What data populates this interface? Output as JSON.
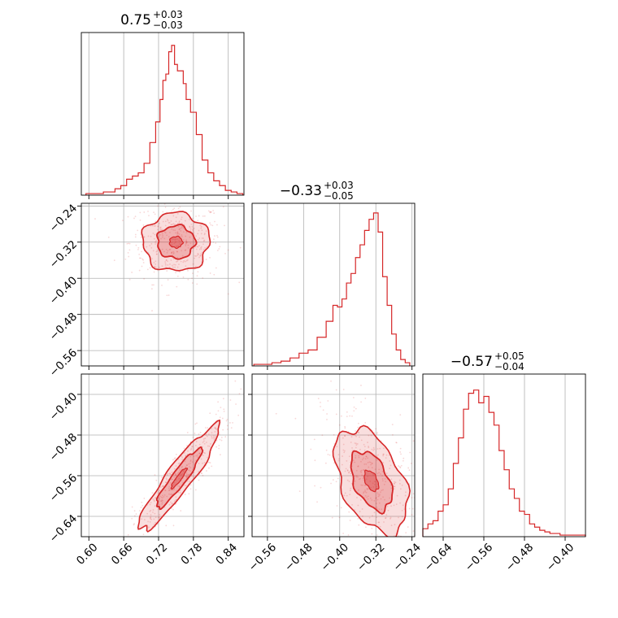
{
  "chart_data": {
    "type": "corner",
    "color": "#d62728",
    "parameters": [
      {
        "title_main": "0.75",
        "title_plus": "+0.03",
        "title_minus": "−0.03",
        "ticks": [
          "0.60",
          "0.66",
          "0.72",
          "0.78",
          "0.84"
        ],
        "tick_values": [
          0.6,
          0.66,
          0.72,
          0.78,
          0.84
        ],
        "range": [
          0.587,
          0.867
        ],
        "hist": {
          "x": [
            0.6,
            0.61,
            0.62,
            0.63,
            0.64,
            0.65,
            0.66,
            0.67,
            0.68,
            0.69,
            0.7,
            0.71,
            0.72,
            0.725,
            0.73,
            0.735,
            0.74,
            0.745,
            0.75,
            0.755,
            0.76,
            0.765,
            0.77,
            0.78,
            0.79,
            0.8,
            0.81,
            0.82,
            0.83,
            0.84,
            0.85,
            0.86
          ],
          "y": [
            0.01,
            0.01,
            0.01,
            0.02,
            0.02,
            0.04,
            0.06,
            0.1,
            0.12,
            0.14,
            0.2,
            0.33,
            0.46,
            0.6,
            0.72,
            0.76,
            0.9,
            0.94,
            0.82,
            0.78,
            0.78,
            0.7,
            0.6,
            0.52,
            0.38,
            0.22,
            0.14,
            0.09,
            0.06,
            0.03,
            0.02,
            0.01
          ]
        }
      },
      {
        "title_main": "−0.33",
        "title_plus": "+0.03",
        "title_minus": "−0.05",
        "ticks": [
          "−0.56",
          "−0.48",
          "−0.40",
          "−0.32",
          "−0.24"
        ],
        "tick_values": [
          -0.56,
          -0.48,
          -0.4,
          -0.32,
          -0.24
        ],
        "range": [
          -0.594,
          -0.234
        ],
        "hist": {
          "x": [
            -0.58,
            -0.56,
            -0.54,
            -0.52,
            -0.5,
            -0.48,
            -0.46,
            -0.44,
            -0.42,
            -0.41,
            -0.4,
            -0.39,
            -0.38,
            -0.37,
            -0.36,
            -0.35,
            -0.34,
            -0.33,
            -0.32,
            -0.31,
            -0.3,
            -0.29,
            -0.28,
            -0.27,
            -0.26,
            -0.25
          ],
          "y": [
            0.01,
            0.01,
            0.02,
            0.03,
            0.05,
            0.08,
            0.1,
            0.18,
            0.28,
            0.38,
            0.37,
            0.42,
            0.52,
            0.58,
            0.68,
            0.76,
            0.85,
            0.92,
            0.96,
            0.84,
            0.56,
            0.38,
            0.2,
            0.1,
            0.04,
            0.02
          ]
        }
      },
      {
        "title_main": "−0.57",
        "title_plus": "+0.05",
        "title_minus": "−0.04",
        "ticks": [
          "−0.64",
          "−0.56",
          "−0.48",
          "−0.40"
        ],
        "tick_values": [
          -0.64,
          -0.56,
          -0.48,
          -0.4
        ],
        "range": [
          -0.68,
          -0.36
        ],
        "hist": {
          "x": [
            -0.675,
            -0.665,
            -0.655,
            -0.645,
            -0.635,
            -0.625,
            -0.615,
            -0.605,
            -0.595,
            -0.585,
            -0.575,
            -0.565,
            -0.555,
            -0.545,
            -0.535,
            -0.525,
            -0.515,
            -0.505,
            -0.495,
            -0.485,
            -0.475,
            -0.465,
            -0.455,
            -0.445,
            -0.435,
            -0.425,
            -0.415,
            -0.405,
            -0.395,
            -0.385,
            -0.375,
            -0.365
          ],
          "y": [
            0.05,
            0.08,
            0.1,
            0.16,
            0.2,
            0.3,
            0.46,
            0.62,
            0.8,
            0.9,
            0.92,
            0.84,
            0.88,
            0.78,
            0.7,
            0.54,
            0.42,
            0.3,
            0.24,
            0.16,
            0.14,
            0.08,
            0.06,
            0.04,
            0.03,
            0.02,
            0.02,
            0.01,
            0.01,
            0.01,
            0.01,
            0.01
          ]
        }
      }
    ],
    "pairs": [
      {
        "x": 0,
        "y": 1,
        "center": [
          0.75,
          -0.32
        ],
        "sigma": [
          0.025,
          0.028
        ],
        "rho": 0.0
      },
      {
        "x": 0,
        "y": 2,
        "center": [
          0.755,
          -0.565
        ],
        "sigma": [
          0.03,
          0.045
        ],
        "rho": 0.92
      },
      {
        "x": 1,
        "y": 2,
        "center": [
          -0.33,
          -0.57
        ],
        "sigma": [
          0.035,
          0.045
        ],
        "rho": -0.45
      }
    ],
    "grid": true,
    "contour_levels": [
      "1-sigma",
      "2-sigma"
    ]
  }
}
